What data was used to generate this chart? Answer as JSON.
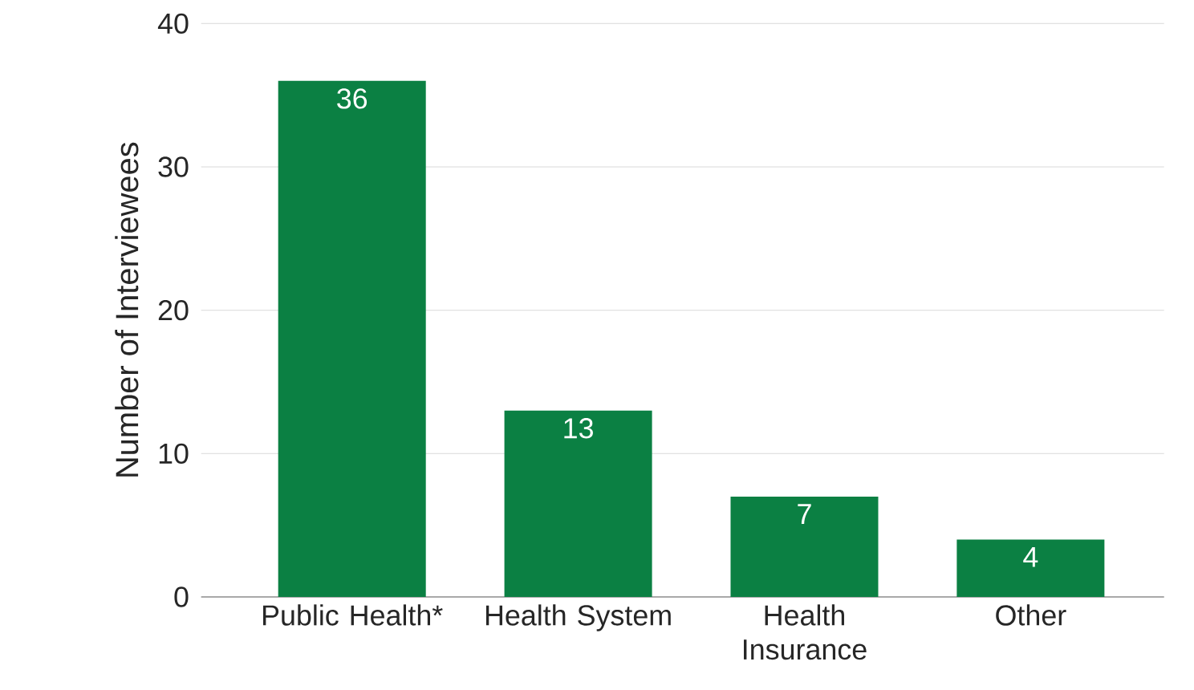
{
  "chart_data": {
    "type": "bar",
    "ylabel": "Number of Interviewees",
    "categories": [
      "Public Health*",
      "Health System",
      "Health Insurance",
      "Other"
    ],
    "values": [
      36,
      13,
      7,
      4
    ],
    "color": "#0b8043",
    "ylim": [
      0,
      40
    ],
    "yticks": [
      0,
      10,
      20,
      30,
      40
    ],
    "grid": "y",
    "data_labels": true
  }
}
